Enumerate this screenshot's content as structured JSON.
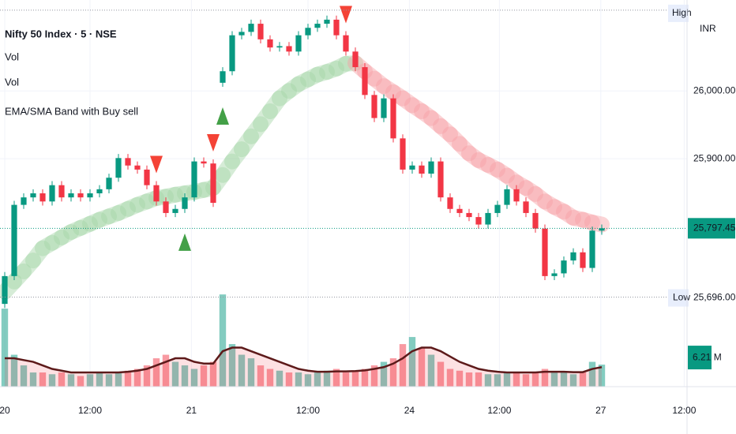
{
  "chart_data": {
    "type": "candlestick",
    "legend": [
      "Nifty 50 Index · 5 · NSE",
      "Vol",
      "Vol",
      "EMA/SMA Band with Buy sell"
    ],
    "currency": "INR",
    "up_color": "#089981",
    "down_color": "#f23645",
    "xlim": [
      -0.5,
      72
    ],
    "xticks": [
      {
        "value": 0,
        "label": "20"
      },
      {
        "value": 9,
        "label": "12:00"
      },
      {
        "value": 19.7,
        "label": "21"
      },
      {
        "value": 32,
        "label": "12:00"
      },
      {
        "value": 42.7,
        "label": "24"
      },
      {
        "value": 52.2,
        "label": "12:00"
      },
      {
        "value": 62.9,
        "label": "27"
      },
      {
        "value": 71.7,
        "label": "12:00"
      }
    ],
    "ylim": [
      25564,
      26134
    ],
    "yticks": [
      {
        "value": 26000,
        "label": "26,000.00"
      },
      {
        "value": 25900,
        "label": "25,900.00"
      }
    ],
    "grid": true,
    "open": [
      25686,
      25727,
      25832,
      25843,
      25849,
      25837,
      25861,
      25843,
      25849,
      25843,
      25849,
      25855,
      25872,
      25901,
      25890,
      25884,
      25861,
      25837,
      25820,
      25826,
      25843,
      25896,
      25893,
      26012,
      26029,
      26082,
      26087,
      26099,
      26076,
      26064,
      26066,
      26058,
      26082,
      26093,
      26099,
      26105,
      26082,
      26058,
      26035,
      25994,
      25960,
      25989,
      25930,
      25884,
      25890,
      25878,
      25896,
      25843,
      25826,
      25820,
      25814,
      25803,
      25820,
      25832,
      25855,
      25837,
      25820,
      25797,
      25727,
      25731,
      25750,
      25762,
      25739,
      25794
    ],
    "high": [
      25733,
      25838,
      25849,
      25855,
      25855,
      25867,
      25867,
      25855,
      25855,
      25855,
      25861,
      25878,
      25907,
      25907,
      25896,
      25890,
      25867,
      25843,
      25832,
      25849,
      25902,
      25902,
      25899,
      26035,
      26088,
      26093,
      26105,
      26105,
      26082,
      26072,
      26072,
      26088,
      26099,
      26105,
      26111,
      26111,
      26088,
      26064,
      26041,
      26000,
      25995,
      25995,
      25936,
      25896,
      25896,
      25902,
      25902,
      25849,
      25832,
      25826,
      25820,
      25826,
      25838,
      25861,
      25861,
      25843,
      25826,
      25803,
      25737,
      25756,
      25768,
      25768,
      25800,
      25803
    ],
    "low": [
      25680,
      25721,
      25826,
      25837,
      25831,
      25831,
      25837,
      25837,
      25837,
      25837,
      25843,
      25849,
      25866,
      25884,
      25878,
      25855,
      25831,
      25814,
      25814,
      25820,
      25837,
      25887,
      25829,
      26006,
      26023,
      26076,
      26081,
      26070,
      26058,
      26058,
      26052,
      26052,
      26076,
      26087,
      26093,
      26076,
      26052,
      26029,
      25988,
      25954,
      25954,
      25924,
      25878,
      25878,
      25872,
      25872,
      25837,
      25820,
      25814,
      25808,
      25797,
      25797,
      25814,
      25826,
      25831,
      25814,
      25791,
      25721,
      25721,
      25725,
      25744,
      25733,
      25733,
      25788
    ],
    "close": [
      25727,
      25832,
      25843,
      25849,
      25837,
      25861,
      25843,
      25849,
      25843,
      25849,
      25855,
      25872,
      25901,
      25890,
      25884,
      25861,
      25837,
      25820,
      25826,
      25843,
      25896,
      25893,
      25835,
      26029,
      26082,
      26087,
      26099,
      26076,
      26064,
      26066,
      26058,
      26082,
      26093,
      26099,
      26105,
      26082,
      26058,
      26035,
      25994,
      25960,
      25989,
      25930,
      25884,
      25890,
      25878,
      25896,
      25843,
      25826,
      25820,
      25814,
      25803,
      25820,
      25832,
      25855,
      25837,
      25820,
      25797,
      25727,
      25731,
      25750,
      25762,
      25739,
      25794,
      25797.45
    ],
    "ema": [
      25704,
      25719,
      25734,
      25750,
      25768,
      25776,
      25784,
      25792,
      25798,
      25804,
      25810,
      25815,
      25820,
      25826,
      25832,
      25837,
      25842,
      25844,
      25847,
      25849,
      25851,
      25854,
      25857,
      25876,
      25896,
      25914,
      25933,
      25951,
      25970,
      25989,
      26000,
      26010,
      26017,
      26024,
      26028,
      26033,
      26040,
      26041,
      26029,
      26018,
      26007,
      25998,
      25989,
      25979,
      25970,
      25960,
      25948,
      25936,
      25922,
      25908,
      25898,
      25891,
      25884,
      25875,
      25865,
      25857,
      25848,
      25837,
      25829,
      25822,
      25813,
      25810,
      25806,
      25803
    ],
    "ema_up_color": "#a5d6a7",
    "ema_down_color": "#f7a1a6",
    "buy_signals": [
      19,
      23
    ],
    "sell_signals": [
      16,
      22,
      36
    ],
    "buy_color": "#43a047",
    "sell_color": "#f44336",
    "last": {
      "value": 25797.45,
      "label": "25,797.45"
    },
    "high_marker": {
      "name": "High",
      "value": 26119
    },
    "low_marker": {
      "name": "Low",
      "value": 25696,
      "label": "25,696.00"
    },
    "volume": {
      "ylim": [
        0,
        26.7
      ],
      "values": [
        22,
        9,
        6,
        4,
        4,
        3.5,
        4,
        3.5,
        3,
        3.5,
        4,
        3.5,
        4,
        4.5,
        5,
        6,
        8,
        9,
        7,
        6,
        5,
        6,
        7,
        26,
        12,
        9,
        8,
        6,
        5,
        4.5,
        4,
        4,
        3.5,
        4,
        4.5,
        5,
        4,
        4.5,
        5,
        6,
        7,
        8,
        12,
        14,
        11,
        9,
        7,
        5,
        4.5,
        4,
        4,
        3.5,
        3.5,
        4,
        4,
        3.5,
        4,
        5,
        4,
        4,
        3.5,
        4,
        7,
        6.21
      ],
      "value_labels": [
        null,
        null,
        null,
        null,
        null,
        null,
        null,
        null,
        null,
        null,
        null,
        null,
        null,
        null,
        null,
        null,
        null,
        null,
        null,
        null,
        null,
        null,
        null,
        null,
        null,
        null,
        null,
        null,
        null,
        null,
        null,
        null,
        null,
        null,
        null,
        null,
        null,
        null,
        null,
        null,
        null,
        null,
        null,
        null,
        null,
        null,
        null,
        null,
        null,
        null,
        null,
        null,
        null,
        null,
        null,
        null,
        null,
        null,
        null,
        null,
        null,
        null,
        null,
        "6.21 M"
      ],
      "ma": [
        8,
        8,
        7.5,
        7,
        6,
        5,
        4.5,
        4,
        4,
        4,
        4,
        4,
        4,
        4.2,
        4.5,
        5,
        6,
        7,
        8,
        8,
        7,
        6.5,
        6.5,
        10,
        11,
        11,
        10,
        9,
        8,
        7,
        6,
        5,
        4.5,
        4.2,
        4.2,
        4.3,
        4.3,
        4.4,
        4.6,
        5,
        5.5,
        6.5,
        8,
        10,
        11,
        11,
        10,
        8.5,
        7,
        6,
        5,
        4.5,
        4.2,
        4,
        4,
        4,
        4,
        4.2,
        4.2,
        4.2,
        4.1,
        4.1,
        5,
        5.5
      ],
      "ma_color": "#5d1a1a"
    }
  }
}
